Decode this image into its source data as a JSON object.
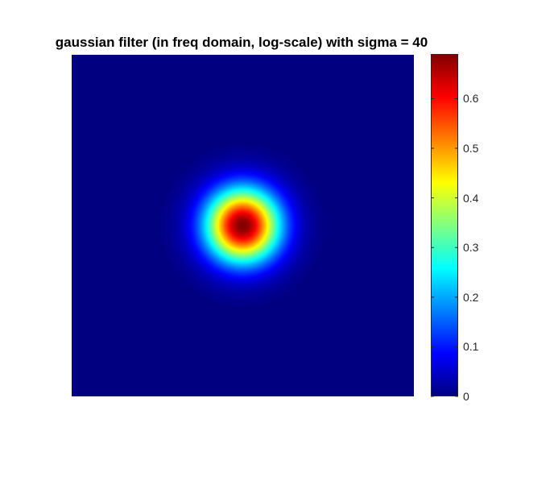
{
  "chart_data": {
    "type": "heatmap",
    "title": "gaussian filter (in freq domain, log-scale) with sigma = 40",
    "xlabel": "",
    "ylabel": "",
    "colormap": "jet",
    "clim": [
      0,
      0.69
    ],
    "colorbar": {
      "ticks": [
        0,
        0.1,
        0.2,
        0.3,
        0.4,
        0.5,
        0.6
      ],
      "tick_labels": [
        "0",
        "0.1",
        "0.2",
        "0.3",
        "0.4",
        "0.5",
        "0.6"
      ]
    },
    "peak": {
      "value": 0.69,
      "center_fraction": [
        0.5,
        0.5
      ]
    },
    "gaussian_sigma_fraction": 0.075,
    "grid": false,
    "axis_ticks_visible": false
  }
}
